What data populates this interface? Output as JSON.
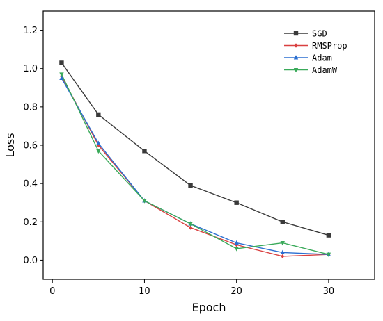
{
  "chart_data": {
    "type": "line",
    "xlabel": "Epoch",
    "ylabel": "Loss",
    "xlim": [
      -1,
      35
    ],
    "ylim": [
      -0.1,
      1.3
    ],
    "xticks": [
      0,
      10,
      20,
      30
    ],
    "yticks": [
      0.0,
      0.2,
      0.4,
      0.6,
      0.8,
      1.0,
      1.2
    ],
    "ytick_labels": [
      "0.0",
      "0.2",
      "0.4",
      "0.6",
      "0.8",
      "1.0",
      "1.2"
    ],
    "x": [
      1,
      5,
      10,
      15,
      20,
      25,
      30
    ],
    "grid": false,
    "legend_position": "top-right",
    "series": [
      {
        "name": "SGD",
        "color": "#3a3a3a",
        "marker": "square",
        "values": [
          1.03,
          0.76,
          0.57,
          0.39,
          0.3,
          0.2,
          0.13
        ]
      },
      {
        "name": "RMSProp",
        "color": "#d94040",
        "marker": "diamond",
        "values": [
          0.96,
          0.6,
          0.31,
          0.17,
          0.08,
          0.02,
          0.03
        ]
      },
      {
        "name": "Adam",
        "color": "#2b6fd1",
        "marker": "triangle-up",
        "values": [
          0.95,
          0.61,
          0.31,
          0.19,
          0.09,
          0.04,
          0.03
        ]
      },
      {
        "name": "AdamW",
        "color": "#3aaa5a",
        "marker": "triangle-down",
        "values": [
          0.97,
          0.57,
          0.31,
          0.19,
          0.06,
          0.09,
          0.03
        ]
      }
    ]
  }
}
